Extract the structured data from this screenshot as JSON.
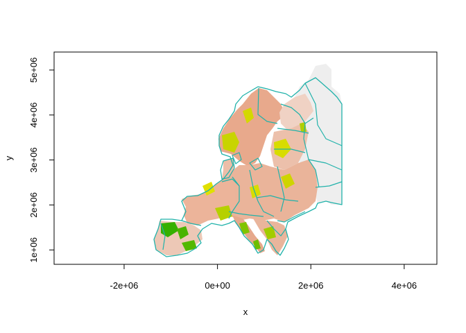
{
  "chart_data": {
    "type": "heatmap",
    "title": "",
    "xlabel": "x",
    "ylabel": "y",
    "xlim": [
      -3500000,
      4700000
    ],
    "ylim": [
      680000,
      5400000
    ],
    "x_ticks": [
      {
        "value": -2000000,
        "label": "-2e+06"
      },
      {
        "value": 0,
        "label": "0e+00"
      },
      {
        "value": 2000000,
        "label": "2e+06"
      },
      {
        "value": 4000000,
        "label": "4e+06"
      }
    ],
    "y_ticks": [
      {
        "value": 1000000,
        "label": "1e+06"
      },
      {
        "value": 2000000,
        "label": "2e+06"
      },
      {
        "value": 3000000,
        "label": "3e+06"
      },
      {
        "value": 4000000,
        "label": "4e+06"
      },
      {
        "value": 5000000,
        "label": "5e+06"
      }
    ],
    "grid": false,
    "legend": "none",
    "raster_colors": {
      "low": "#f2f2f2",
      "mid": "#ecb08f",
      "high_yellow": "#e6e600",
      "high_green": "#00a600"
    },
    "border_color": "#20b2aa"
  }
}
